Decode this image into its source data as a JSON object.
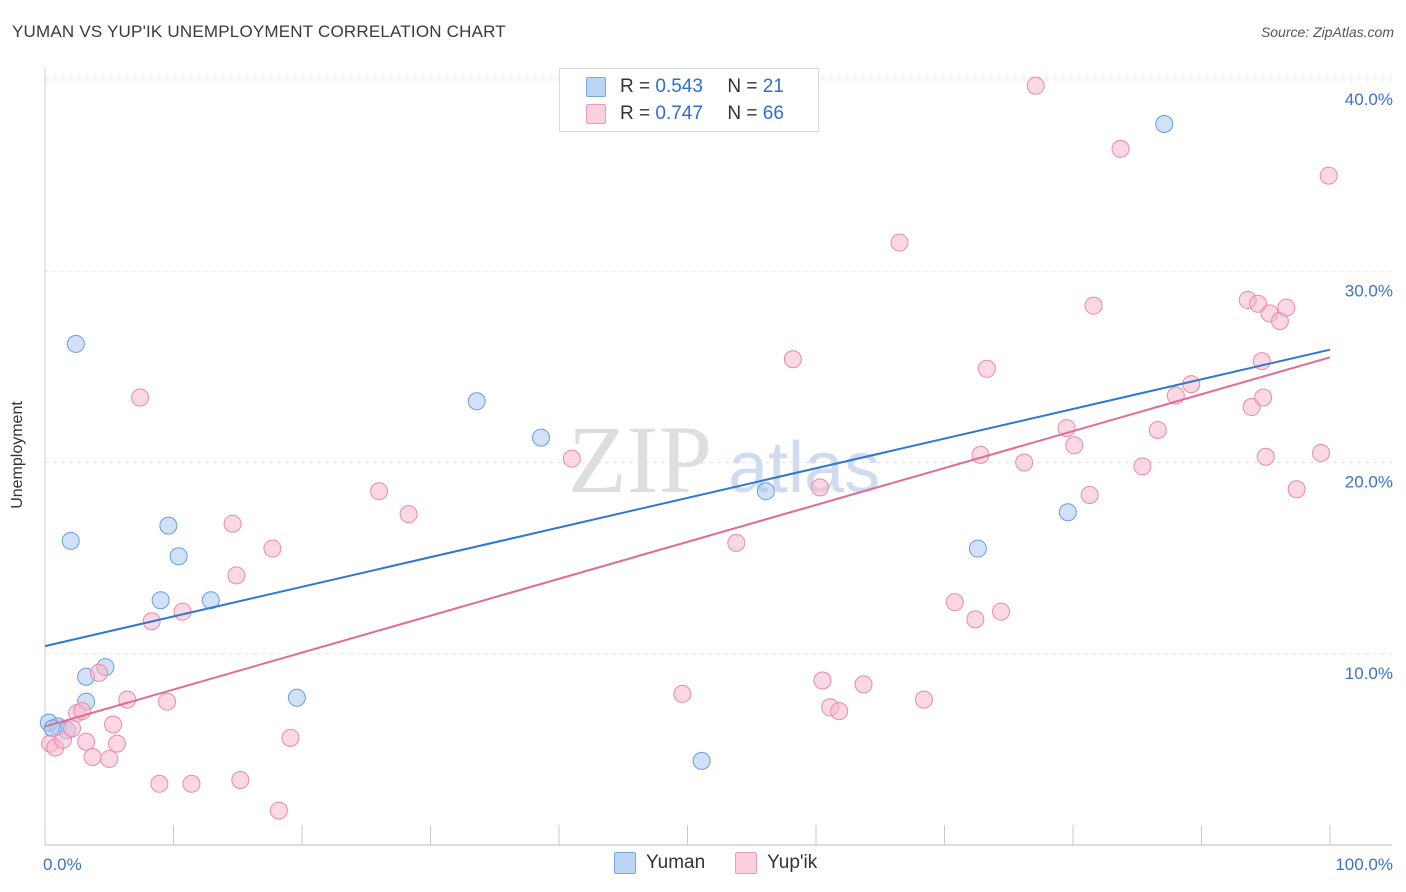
{
  "title": "YUMAN VS YUP'IK UNEMPLOYMENT CORRELATION CHART",
  "source": "Source: ZipAtlas.com",
  "watermark": {
    "zip": "ZIP",
    "atlas": "atlas"
  },
  "legend": {
    "rows": [
      {
        "r_label": "R =",
        "r_value": "0.543",
        "n_label": "N =",
        "n_value": "21"
      },
      {
        "r_label": "R =",
        "r_value": "0.747",
        "n_label": "N =",
        "n_value": "66"
      }
    ]
  },
  "colors": {
    "yuman_fill": "#a9c9f2",
    "yuman_stroke": "#6b9de0",
    "yuman_line": "#2f77d3",
    "yupik_fill": "#f7b8cc",
    "yupik_stroke": "#e98aa8",
    "yupik_line": "#e36a96",
    "axis_text": "#3a72cc",
    "grid": "#e4e4e4"
  },
  "chart_data": {
    "type": "scatter",
    "xlabel": "",
    "ylabel": "Unemployment",
    "xlim": [
      0,
      100
    ],
    "ylim": [
      0,
      40
    ],
    "x_tick_labels": {
      "left": "0.0%",
      "right": "100.0%"
    },
    "y_ticks": [
      10,
      20,
      30,
      40
    ],
    "y_tick_labels": [
      "10.0%",
      "20.0%",
      "30.0%",
      "40.0%"
    ],
    "grid": true,
    "legend_position": "top-center",
    "series": [
      {
        "name": "Yuman",
        "r": 0.543,
        "n": 21,
        "trend": {
          "x": [
            0,
            100
          ],
          "y": [
            10.4,
            25.9
          ]
        },
        "points": [
          [
            0.3,
            6.4
          ],
          [
            1.0,
            6.2
          ],
          [
            1.7,
            6.0
          ],
          [
            2.0,
            15.9
          ],
          [
            2.4,
            26.2
          ],
          [
            3.2,
            8.8
          ],
          [
            3.2,
            7.5
          ],
          [
            4.7,
            9.3
          ],
          [
            9.0,
            12.8
          ],
          [
            9.6,
            16.7
          ],
          [
            10.4,
            15.1
          ],
          [
            12.9,
            12.8
          ],
          [
            19.6,
            7.7
          ],
          [
            33.6,
            23.2
          ],
          [
            38.6,
            21.3
          ],
          [
            51.1,
            4.4
          ],
          [
            56.1,
            18.5
          ],
          [
            72.6,
            15.5
          ],
          [
            79.6,
            17.4
          ],
          [
            87.1,
            37.7
          ],
          [
            0.6,
            6.1
          ]
        ]
      },
      {
        "name": "Yup'ik",
        "r": 0.747,
        "n": 66,
        "trend": {
          "x": [
            0,
            100
          ],
          "y": [
            6.2,
            25.5
          ]
        },
        "points": [
          [
            0.4,
            5.3
          ],
          [
            0.8,
            5.1
          ],
          [
            1.4,
            5.5
          ],
          [
            2.1,
            6.1
          ],
          [
            2.5,
            6.9
          ],
          [
            2.9,
            7.0
          ],
          [
            3.2,
            5.4
          ],
          [
            3.7,
            4.6
          ],
          [
            4.2,
            9.0
          ],
          [
            5.0,
            4.5
          ],
          [
            5.3,
            6.3
          ],
          [
            5.6,
            5.3
          ],
          [
            6.4,
            7.6
          ],
          [
            7.4,
            23.4
          ],
          [
            8.3,
            11.7
          ],
          [
            8.9,
            3.2
          ],
          [
            9.5,
            7.5
          ],
          [
            10.7,
            12.2
          ],
          [
            11.4,
            3.2
          ],
          [
            14.6,
            16.8
          ],
          [
            14.9,
            14.1
          ],
          [
            15.2,
            3.4
          ],
          [
            17.7,
            15.5
          ],
          [
            18.2,
            1.8
          ],
          [
            19.1,
            5.6
          ],
          [
            26.0,
            18.5
          ],
          [
            28.3,
            17.3
          ],
          [
            41.0,
            20.2
          ],
          [
            49.6,
            7.9
          ],
          [
            53.8,
            15.8
          ],
          [
            58.2,
            25.4
          ],
          [
            60.3,
            18.7
          ],
          [
            60.5,
            8.6
          ],
          [
            61.1,
            7.2
          ],
          [
            61.8,
            7.0
          ],
          [
            63.7,
            8.4
          ],
          [
            66.5,
            31.5
          ],
          [
            68.4,
            7.6
          ],
          [
            70.8,
            12.7
          ],
          [
            72.4,
            11.8
          ],
          [
            72.8,
            20.4
          ],
          [
            73.3,
            24.9
          ],
          [
            74.4,
            12.2
          ],
          [
            76.2,
            20.0
          ],
          [
            77.1,
            39.7
          ],
          [
            79.5,
            21.8
          ],
          [
            80.1,
            20.9
          ],
          [
            81.3,
            18.3
          ],
          [
            81.6,
            28.2
          ],
          [
            83.7,
            36.4
          ],
          [
            85.4,
            19.8
          ],
          [
            86.6,
            21.7
          ],
          [
            88.0,
            23.5
          ],
          [
            89.2,
            24.1
          ],
          [
            93.9,
            22.9
          ],
          [
            93.6,
            28.5
          ],
          [
            94.4,
            28.3
          ],
          [
            94.7,
            25.3
          ],
          [
            94.8,
            23.4
          ],
          [
            95.3,
            27.8
          ],
          [
            96.1,
            27.4
          ],
          [
            96.6,
            28.1
          ],
          [
            95.0,
            20.3
          ],
          [
            97.4,
            18.6
          ],
          [
            99.3,
            20.5
          ],
          [
            99.9,
            35.0
          ]
        ]
      }
    ]
  }
}
